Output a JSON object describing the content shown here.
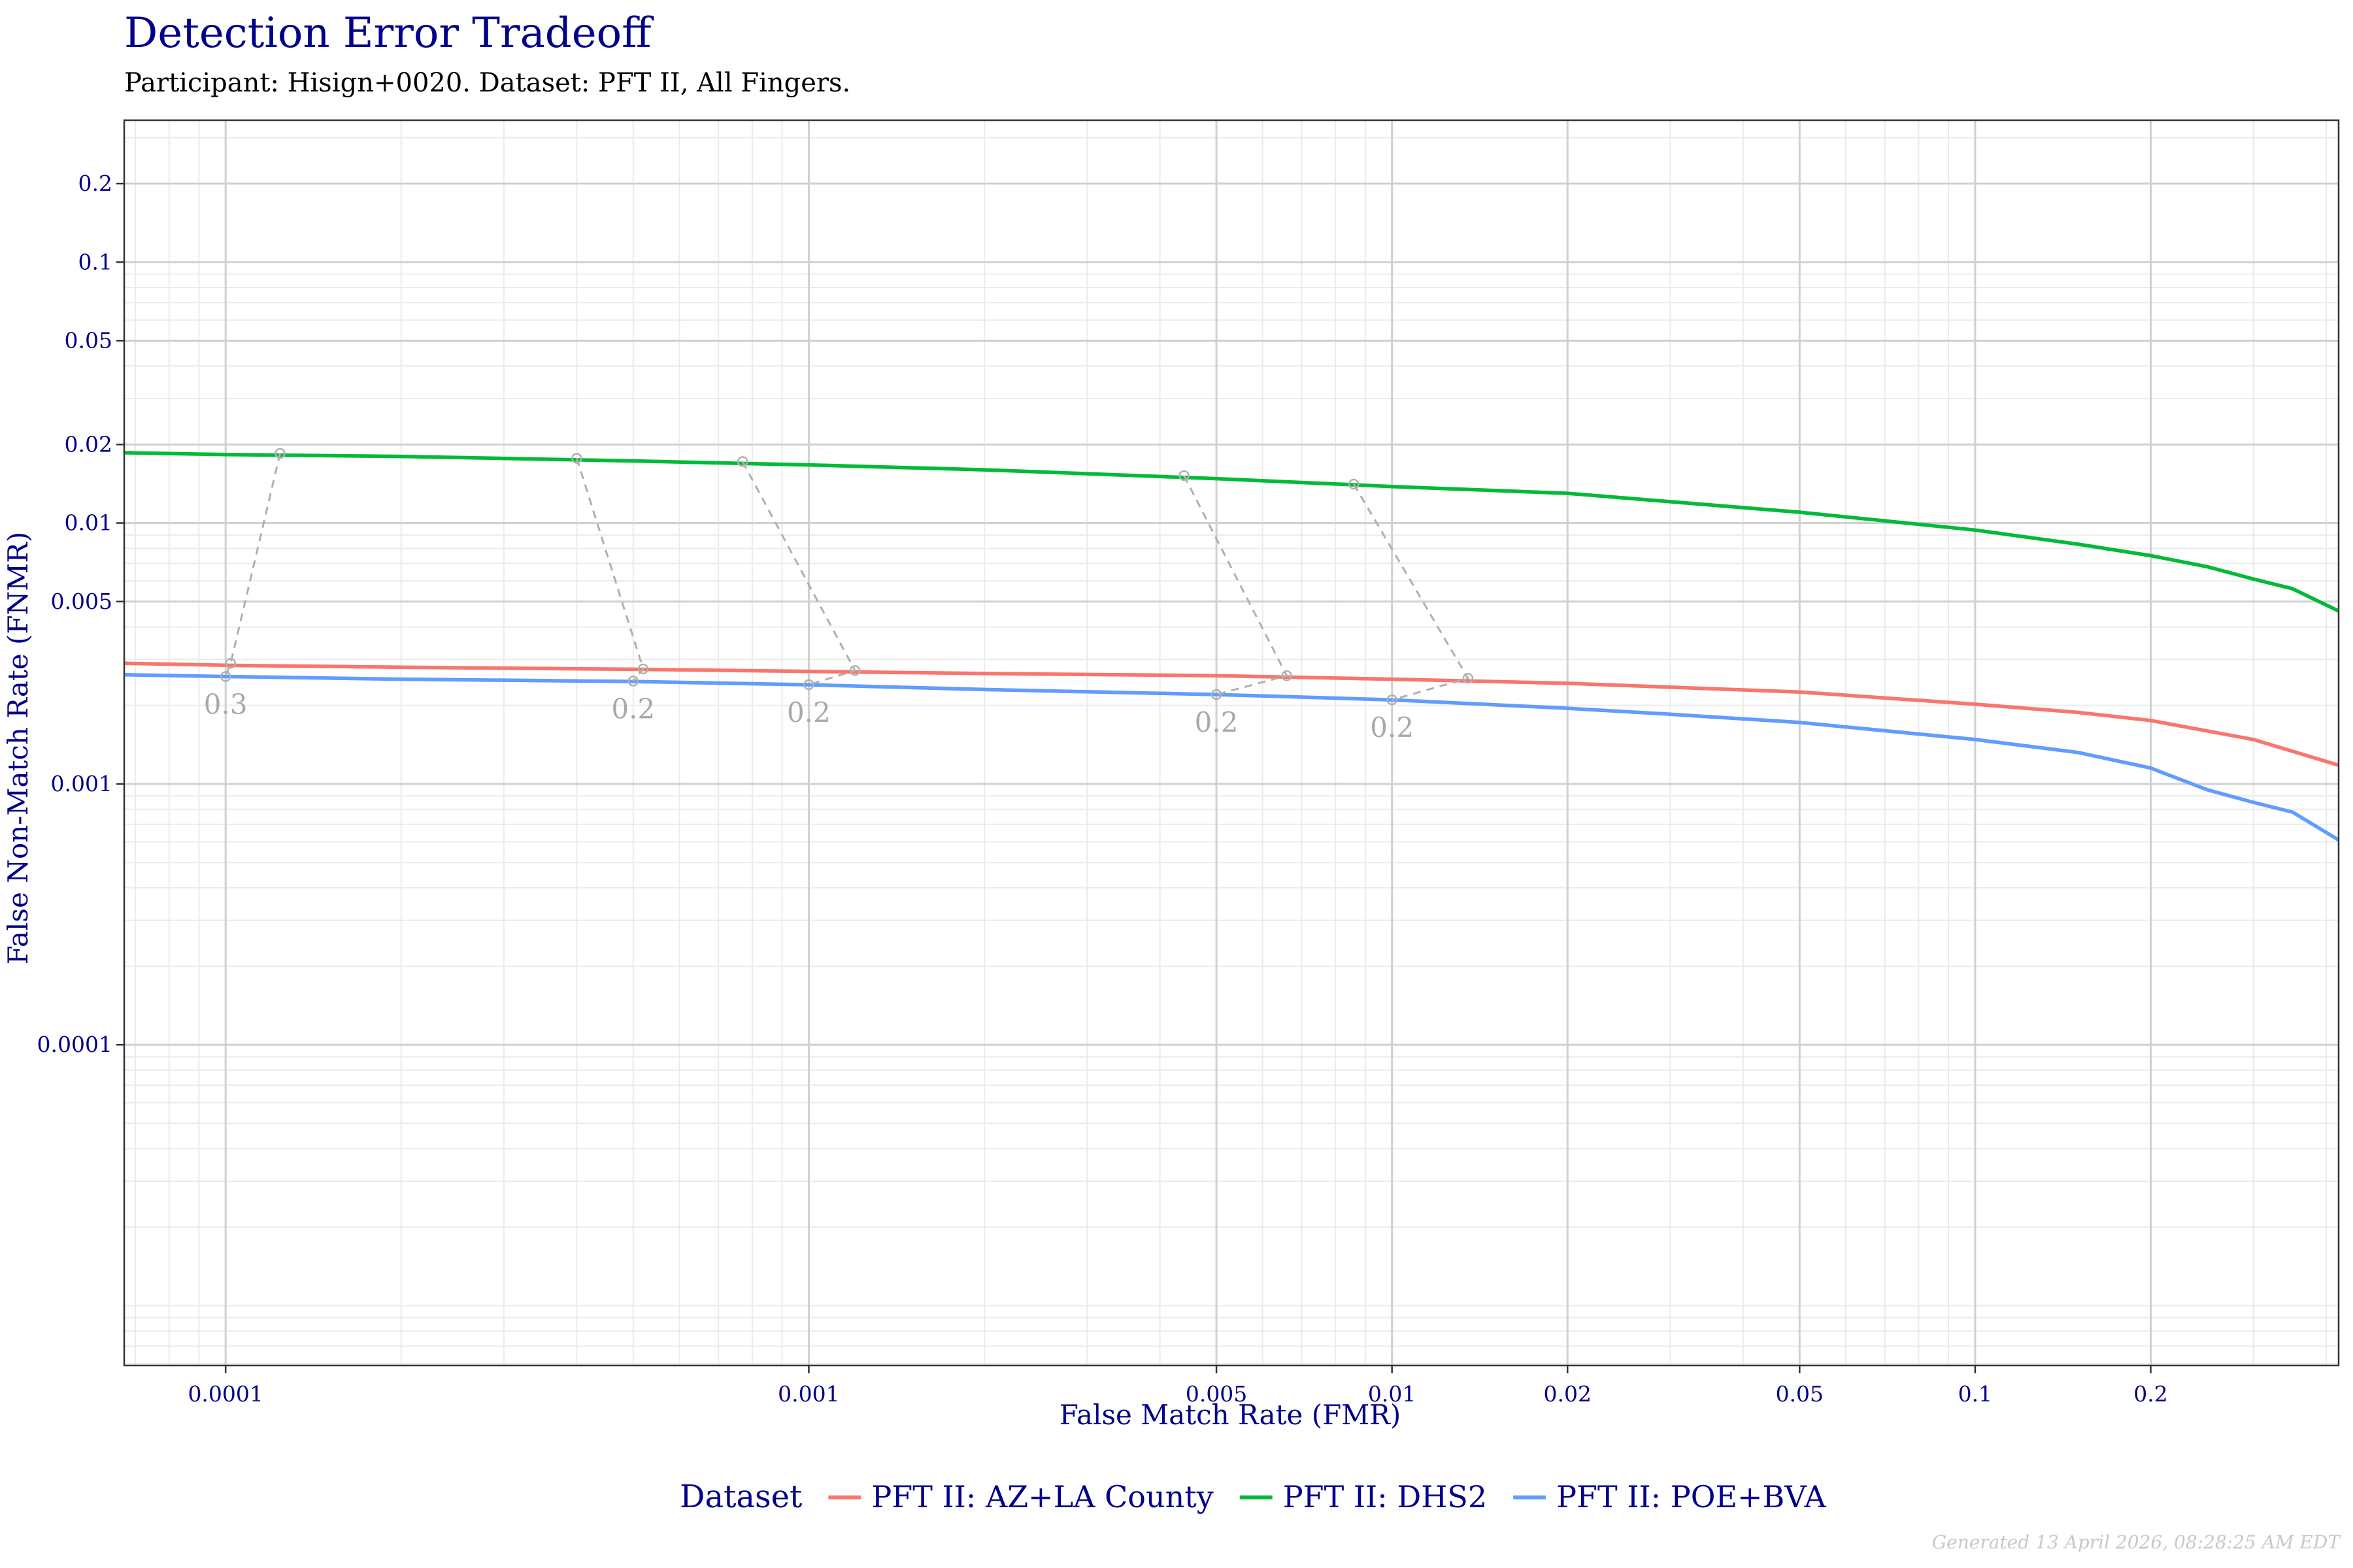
{
  "chart_data": {
    "type": "line",
    "title": "Detection Error Tradeoff",
    "subtitle": "Participant: Hisign+0020. Dataset: PFT II, All Fingers.",
    "xlabel": "False Match Rate (FMR)",
    "ylabel": "False Non-Match Rate (FNMR)",
    "x_scale": "log",
    "y_scale": "log",
    "xlim": [
      6.7e-05,
      0.42
    ],
    "ylim": [
      5.9e-06,
      0.35
    ],
    "grid": true,
    "x_ticks": [
      0.0001,
      0.001,
      0.005,
      0.01,
      0.02,
      0.05,
      0.1,
      0.2
    ],
    "x_tick_labels": [
      "0.0001",
      "0.001",
      "0.005",
      "0.01",
      "0.02",
      "0.05",
      "0.1",
      "0.2"
    ],
    "y_ticks": [
      0.0001,
      0.001,
      0.005,
      0.01,
      0.02,
      0.05,
      0.1,
      0.2
    ],
    "y_tick_labels": [
      "0.0001",
      "0.001",
      "0.005",
      "0.01",
      "0.02",
      "0.05",
      "0.1",
      "0.2"
    ],
    "legend_title": "Dataset",
    "legend_position": "bottom",
    "series": [
      {
        "name": "PFT II: AZ+LA County",
        "color": "#f8766d",
        "x": [
          6.7e-05,
          0.0001,
          0.0002,
          0.0005,
          0.001,
          0.002,
          0.005,
          0.01,
          0.02,
          0.05,
          0.1,
          0.15,
          0.2,
          0.3,
          0.42
        ],
        "y": [
          0.0029,
          0.00285,
          0.0028,
          0.00275,
          0.0027,
          0.00265,
          0.0026,
          0.00252,
          0.00243,
          0.00225,
          0.00202,
          0.00188,
          0.00175,
          0.00148,
          0.00118
        ]
      },
      {
        "name": "PFT II: DHS2",
        "color": "#00ba38",
        "x": [
          6.7e-05,
          0.0001,
          0.0002,
          0.0005,
          0.001,
          0.002,
          0.005,
          0.01,
          0.02,
          0.05,
          0.1,
          0.15,
          0.2,
          0.25,
          0.3,
          0.35,
          0.42
        ],
        "y": [
          0.0186,
          0.0183,
          0.018,
          0.0173,
          0.0167,
          0.016,
          0.0148,
          0.0138,
          0.013,
          0.011,
          0.0094,
          0.0083,
          0.0075,
          0.0068,
          0.0061,
          0.0056,
          0.0046
        ]
      },
      {
        "name": "PFT II: POE+BVA",
        "color": "#619cff",
        "x": [
          6.7e-05,
          0.0001,
          0.0002,
          0.0005,
          0.001,
          0.002,
          0.005,
          0.01,
          0.02,
          0.03,
          0.05,
          0.1,
          0.15,
          0.2,
          0.25,
          0.3,
          0.35,
          0.42
        ],
        "y": [
          0.00262,
          0.00258,
          0.00252,
          0.00247,
          0.0024,
          0.0023,
          0.0022,
          0.0021,
          0.00195,
          0.00185,
          0.00172,
          0.00148,
          0.00132,
          0.00115,
          0.00095,
          0.00085,
          0.00078,
          0.00061
        ]
      }
    ],
    "threshold_annotations": [
      {
        "label": "0.3",
        "points": [
          [
            0.000124,
            0.0185
          ],
          [
            0.000102,
            0.0029
          ],
          [
            0.0001,
            0.00258
          ]
        ]
      },
      {
        "label": "0.2",
        "points": [
          [
            0.0004,
            0.0177
          ],
          [
            0.00052,
            0.00276
          ],
          [
            0.0005,
            0.00248
          ]
        ]
      },
      {
        "label": "0.2",
        "points": [
          [
            0.00077,
            0.0172
          ],
          [
            0.0012,
            0.00272
          ],
          [
            0.001,
            0.0024
          ]
        ]
      },
      {
        "label": "0.2",
        "points": [
          [
            0.0044,
            0.0152
          ],
          [
            0.0066,
            0.0026
          ],
          [
            0.005,
            0.0022
          ]
        ]
      },
      {
        "label": "0.2",
        "points": [
          [
            0.0086,
            0.0141
          ],
          [
            0.0135,
            0.00254
          ],
          [
            0.01,
            0.0021
          ]
        ]
      }
    ]
  },
  "footer": "Generated 13 April 2026, 08:28:25 AM EDT"
}
